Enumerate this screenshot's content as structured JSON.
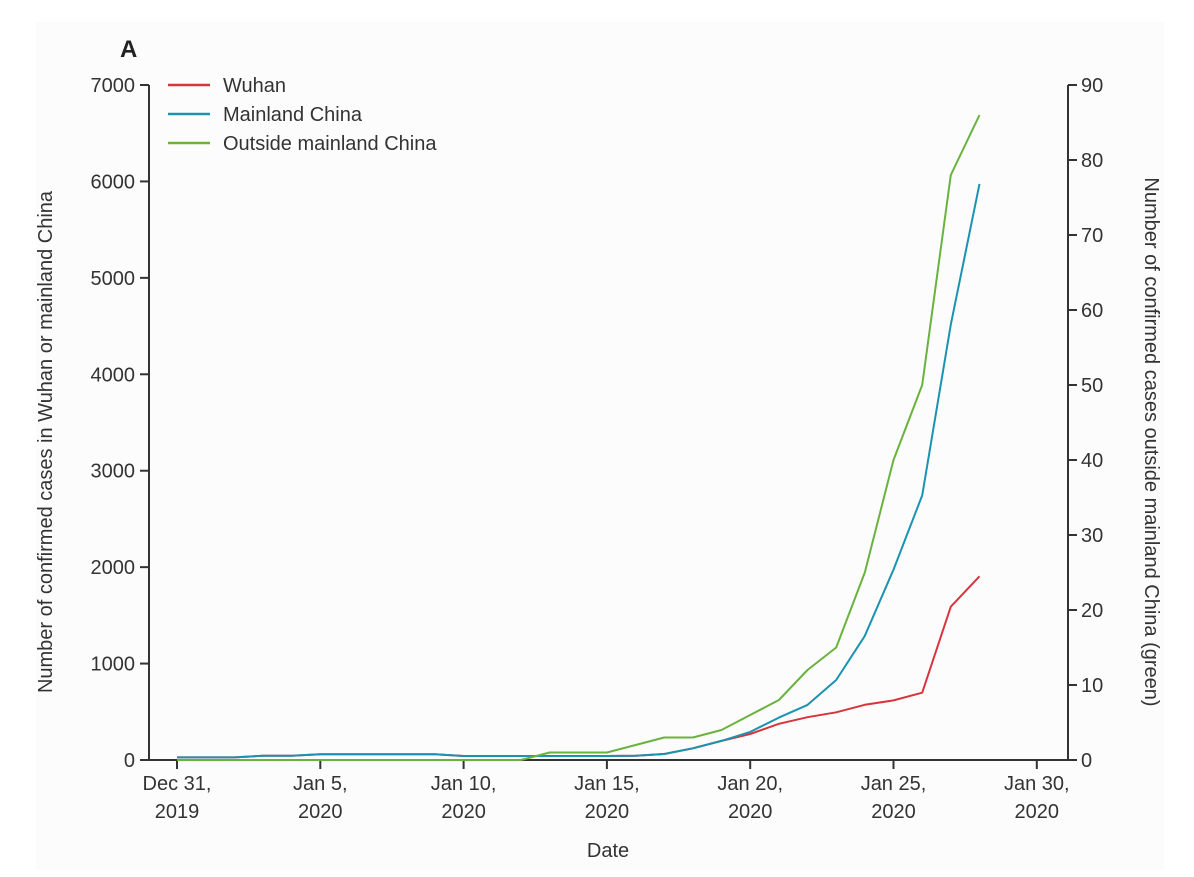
{
  "panel_label": "A",
  "chart_data": {
    "type": "line",
    "x_axis": {
      "label": "Date",
      "range": [
        "2019-12-31",
        "2020-01-30"
      ],
      "ticks": [
        {
          "date": "2019-12-31",
          "line1": "Dec 31,",
          "line2": "2019"
        },
        {
          "date": "2020-01-05",
          "line1": "Jan 5,",
          "line2": "2020"
        },
        {
          "date": "2020-01-10",
          "line1": "Jan 10,",
          "line2": "2020"
        },
        {
          "date": "2020-01-15",
          "line1": "Jan 15,",
          "line2": "2020"
        },
        {
          "date": "2020-01-20",
          "line1": "Jan 20,",
          "line2": "2020"
        },
        {
          "date": "2020-01-25",
          "line1": "Jan 25,",
          "line2": "2020"
        },
        {
          "date": "2020-01-30",
          "line1": "Jan 30,",
          "line2": "2020"
        }
      ]
    },
    "y_left": {
      "label": "Number of confirmed cases in Wuhan or mainland China",
      "range": [
        0,
        7000
      ],
      "ticks": [
        0,
        1000,
        2000,
        3000,
        4000,
        5000,
        6000,
        7000
      ]
    },
    "y_right": {
      "label": "Number of confirmed cases outside mainland China (green)",
      "range": [
        0,
        90
      ],
      "ticks": [
        0,
        10,
        20,
        30,
        40,
        50,
        60,
        70,
        80,
        90
      ]
    },
    "grid": false,
    "legend_position": "top-left",
    "series": [
      {
        "name": "Wuhan",
        "axis": "left",
        "color": "#d8343c",
        "dates": [
          "2019-12-31",
          "2020-01-01",
          "2020-01-02",
          "2020-01-03",
          "2020-01-04",
          "2020-01-05",
          "2020-01-06",
          "2020-01-07",
          "2020-01-08",
          "2020-01-09",
          "2020-01-10",
          "2020-01-11",
          "2020-01-12",
          "2020-01-13",
          "2020-01-14",
          "2020-01-15",
          "2020-01-16",
          "2020-01-17",
          "2020-01-18",
          "2020-01-19",
          "2020-01-20",
          "2020-01-21",
          "2020-01-22",
          "2020-01-23",
          "2020-01-24",
          "2020-01-25",
          "2020-01-26",
          "2020-01-27",
          "2020-01-28"
        ],
        "values": [
          27,
          27,
          27,
          44,
          44,
          59,
          59,
          59,
          59,
          59,
          41,
          41,
          41,
          41,
          41,
          41,
          45,
          62,
          121,
          198,
          270,
          375,
          444,
          495,
          572,
          618,
          698,
          1590,
          1905
        ]
      },
      {
        "name": "Mainland China",
        "axis": "left",
        "color": "#1a93b0",
        "dates": [
          "2019-12-31",
          "2020-01-01",
          "2020-01-02",
          "2020-01-03",
          "2020-01-04",
          "2020-01-05",
          "2020-01-06",
          "2020-01-07",
          "2020-01-08",
          "2020-01-09",
          "2020-01-10",
          "2020-01-11",
          "2020-01-12",
          "2020-01-13",
          "2020-01-14",
          "2020-01-15",
          "2020-01-16",
          "2020-01-17",
          "2020-01-18",
          "2020-01-19",
          "2020-01-20",
          "2020-01-21",
          "2020-01-22",
          "2020-01-23",
          "2020-01-24",
          "2020-01-25",
          "2020-01-26",
          "2020-01-27",
          "2020-01-28"
        ],
        "values": [
          27,
          27,
          27,
          44,
          44,
          59,
          59,
          59,
          59,
          59,
          41,
          41,
          41,
          41,
          41,
          41,
          45,
          62,
          121,
          198,
          291,
          440,
          571,
          830,
          1287,
          1975,
          2744,
          4515,
          5974
        ]
      },
      {
        "name": "Outside mainland China",
        "axis": "right",
        "color": "#6ab23e",
        "dates": [
          "2019-12-31",
          "2020-01-01",
          "2020-01-02",
          "2020-01-03",
          "2020-01-04",
          "2020-01-05",
          "2020-01-06",
          "2020-01-07",
          "2020-01-08",
          "2020-01-09",
          "2020-01-10",
          "2020-01-11",
          "2020-01-12",
          "2020-01-13",
          "2020-01-14",
          "2020-01-15",
          "2020-01-16",
          "2020-01-17",
          "2020-01-18",
          "2020-01-19",
          "2020-01-20",
          "2020-01-21",
          "2020-01-22",
          "2020-01-23",
          "2020-01-24",
          "2020-01-25",
          "2020-01-26",
          "2020-01-27",
          "2020-01-28"
        ],
        "values": [
          0,
          0,
          0,
          0,
          0,
          0,
          0,
          0,
          0,
          0,
          0,
          0,
          0,
          1,
          1,
          1,
          2,
          3,
          3,
          4,
          6,
          8,
          12,
          15,
          25,
          40,
          50,
          78,
          86
        ]
      }
    ]
  }
}
